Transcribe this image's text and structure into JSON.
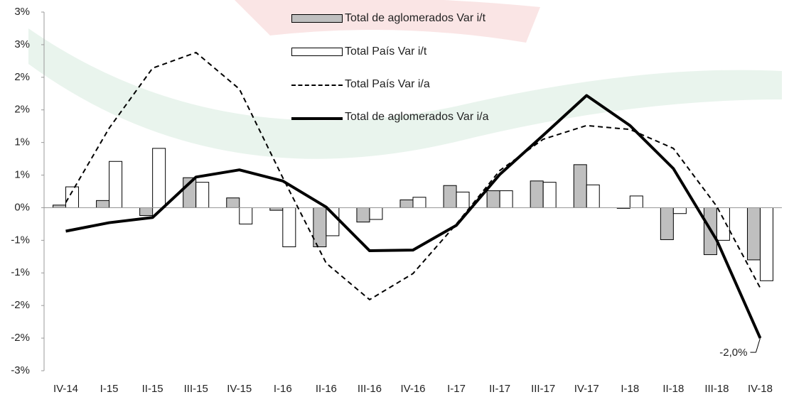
{
  "chart_data": {
    "type": "combo",
    "categories": [
      "IV-14",
      "I-15",
      "II-15",
      "III-15",
      "IV-15",
      "I-16",
      "II-16",
      "III-16",
      "IV-16",
      "I-17",
      "II-17",
      "III-17",
      "IV-17",
      "I-18",
      "II-18",
      "III-18",
      "IV-18"
    ],
    "series": [
      {
        "name": "Total de aglomerados Var i/t",
        "type": "bar",
        "color": "#bfbfbf",
        "values": [
          0.04,
          0.11,
          -0.12,
          0.46,
          0.15,
          -0.04,
          -0.6,
          -0.22,
          0.12,
          0.34,
          0.26,
          0.41,
          0.66,
          -0.01,
          -0.49,
          -0.72,
          -0.8
        ]
      },
      {
        "name": "Total País Var i/t",
        "type": "bar",
        "color": "#ffffff",
        "values": [
          0.32,
          0.71,
          0.91,
          0.39,
          -0.25,
          -0.6,
          -0.43,
          -0.18,
          0.16,
          0.24,
          0.26,
          0.39,
          0.35,
          0.18,
          -0.09,
          -0.5,
          -1.12
        ]
      },
      {
        "name": "Total País Var i/a",
        "type": "line",
        "dashed": true,
        "color": "#000000",
        "values": [
          0.08,
          1.22,
          2.14,
          2.38,
          1.82,
          0.46,
          -0.85,
          -1.41,
          -1.01,
          -0.25,
          0.57,
          1.05,
          1.26,
          1.2,
          0.91,
          0.02,
          -1.23
        ]
      },
      {
        "name": "Total de aglomerados Var i/a",
        "type": "line",
        "dashed": false,
        "color": "#000000",
        "values": [
          -0.36,
          -0.23,
          -0.15,
          0.47,
          0.58,
          0.41,
          0.01,
          -0.66,
          -0.65,
          -0.27,
          0.51,
          1.11,
          1.72,
          1.26,
          0.6,
          -0.5,
          -2.0
        ],
        "value_labels": [
          null,
          null,
          null,
          null,
          null,
          null,
          null,
          null,
          null,
          null,
          null,
          null,
          null,
          null,
          null,
          null,
          "-2,0%"
        ]
      }
    ],
    "ylim": [
      -2.5,
      3.0
    ],
    "yticks": [
      {
        "value": 3.0,
        "label": "3%"
      },
      {
        "value": 2.5,
        "label": "3%"
      },
      {
        "value": 2.0,
        "label": "2%"
      },
      {
        "value": 1.5,
        "label": "2%"
      },
      {
        "value": 1.0,
        "label": "1%"
      },
      {
        "value": 0.5,
        "label": "1%"
      },
      {
        "value": 0,
        "label": "0%"
      },
      {
        "value": -0.5,
        "label": "-1%"
      },
      {
        "value": -1.0,
        "label": "-1%"
      },
      {
        "value": -1.5,
        "label": "-2%"
      },
      {
        "value": -2.0,
        "label": "-2%"
      },
      {
        "value": -2.5,
        "label": "-3%"
      }
    ],
    "grid": false
  }
}
